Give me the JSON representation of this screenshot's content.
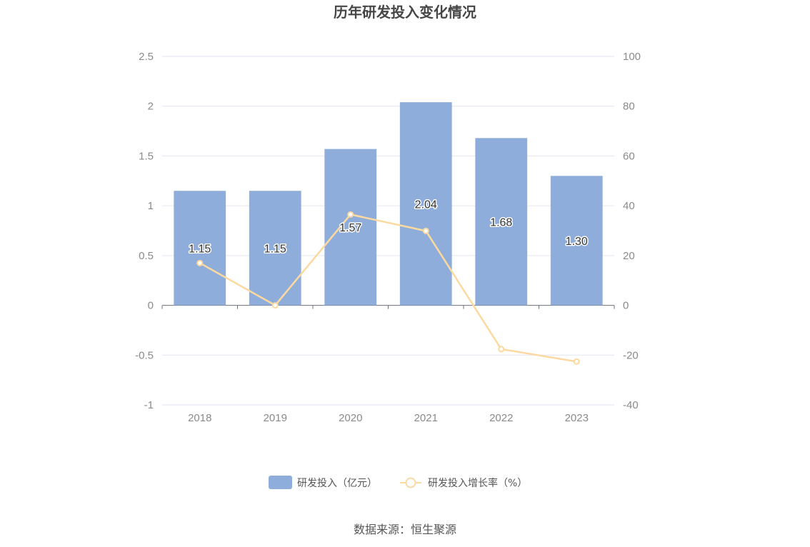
{
  "chart_data": {
    "type": "bar",
    "title": "历年研发投入变化情况",
    "categories": [
      "2018",
      "2019",
      "2020",
      "2021",
      "2022",
      "2023"
    ],
    "series": [
      {
        "name": "研发投入（亿元）",
        "type": "bar",
        "axis": "left",
        "values": [
          1.15,
          1.15,
          1.57,
          2.04,
          1.68,
          1.3
        ],
        "labels": [
          "1.15",
          "1.15",
          "1.57",
          "2.04",
          "1.68",
          "1.30"
        ],
        "color": "#8eadda"
      },
      {
        "name": "研发投入增长率（%）",
        "type": "line",
        "axis": "right",
        "values": [
          17.0,
          0.0,
          36.5,
          29.9,
          -17.6,
          -22.6
        ],
        "color": "#fcd9a0"
      }
    ],
    "y_left": {
      "min": -1,
      "max": 2.5,
      "ticks": [
        "2.5",
        "2",
        "1.5",
        "1",
        "0.5",
        "0",
        "-0.5",
        "-1"
      ]
    },
    "y_right": {
      "min": -40,
      "max": 100,
      "ticks": [
        "100",
        "80",
        "60",
        "40",
        "20",
        "0",
        "-20",
        "-40"
      ]
    },
    "grid": true,
    "legend_position": "bottom"
  },
  "source": "数据来源：恒生聚源"
}
